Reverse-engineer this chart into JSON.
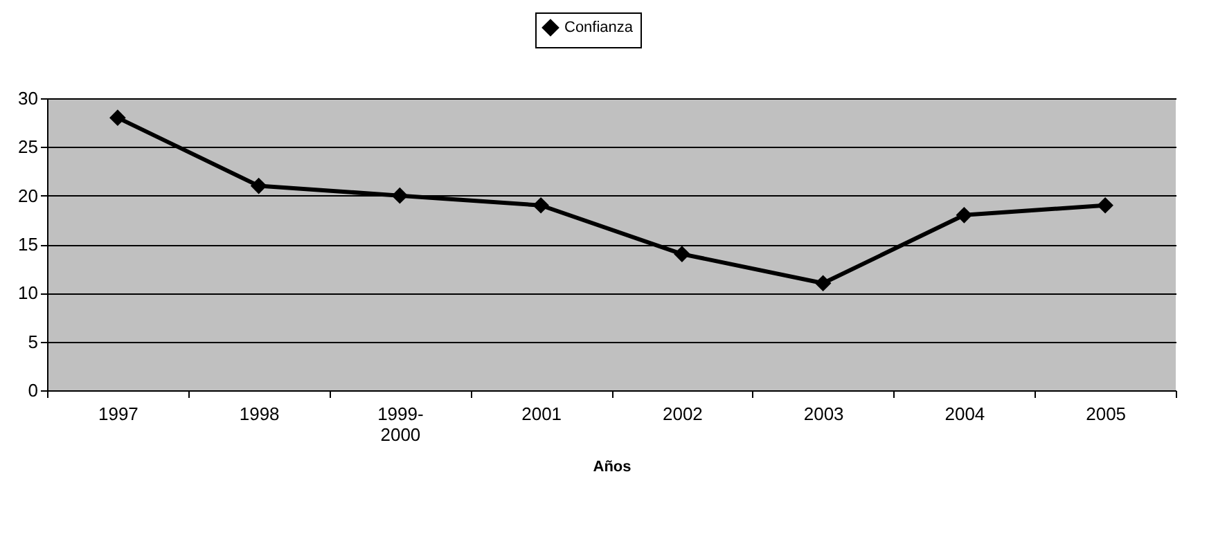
{
  "chart_data": {
    "type": "line",
    "xlabel": "Años",
    "categories": [
      "1997",
      "1998",
      "1999-2000",
      "2001",
      "2002",
      "2003",
      "2004",
      "2005"
    ],
    "series": [
      {
        "name": "Confianza",
        "color": "#000000",
        "values": [
          28,
          21,
          20,
          19,
          14,
          11,
          18,
          19
        ]
      }
    ],
    "ylim": [
      0,
      30
    ],
    "yticks": [
      0,
      5,
      10,
      15,
      20,
      25,
      30
    ],
    "grid": "y",
    "legend": "top",
    "marker": "diamond",
    "line_style": "solid"
  }
}
